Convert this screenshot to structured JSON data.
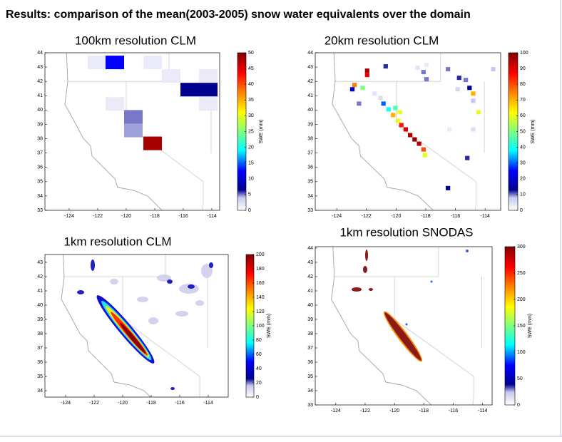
{
  "title": "Results: comparison of the mean(2003-2005) snow water equivalents over the domain",
  "panels": [
    {
      "title": "100km resolution CLM",
      "xlim": [
        -125.7,
        -113.45
      ],
      "ylim": [
        33,
        44
      ],
      "xticks": [
        -124,
        -122,
        -120,
        -118,
        -116,
        -114
      ],
      "yticks": [
        33,
        34,
        35,
        36,
        37,
        38,
        39,
        40,
        41,
        42,
        43,
        44
      ],
      "colorbar": {
        "label": "SWE (mm)",
        "lim": [
          0,
          50
        ],
        "ticks": [
          0,
          5,
          10,
          15,
          20,
          25,
          30,
          35,
          40,
          45,
          50
        ]
      },
      "cells": [
        {
          "lon": -122.7,
          "lat": 42.85,
          "value": 1.5
        },
        {
          "lon": -121.45,
          "lat": 42.85,
          "value": 12.5
        },
        {
          "lon": -118.8,
          "lat": 42.85,
          "value": 1.5
        },
        {
          "lon": -117.5,
          "lat": 41.9,
          "value": 1.5
        },
        {
          "lon": -114.9,
          "lat": 41.9,
          "value": 1.5
        },
        {
          "lon": -116.2,
          "lat": 40.95,
          "value": 6.5
        },
        {
          "lon": -114.9,
          "lat": 40.95,
          "value": 6.5
        },
        {
          "lon": -121.45,
          "lat": 39.95,
          "value": 1.5
        },
        {
          "lon": -114.9,
          "lat": 39.95,
          "value": 1.5
        },
        {
          "lon": -120.15,
          "lat": 39.05,
          "value": 5
        },
        {
          "lon": -120.15,
          "lat": 38.1,
          "value": 4.5
        },
        {
          "lon": -118.8,
          "lat": 37.2,
          "value": 48
        }
      ]
    },
    {
      "title": "20km resolution CLM",
      "xlim": [
        -125.45,
        -112.95
      ],
      "ylim": [
        33,
        44
      ],
      "xticks": [
        -124,
        -122,
        -120,
        -118,
        -116,
        -114
      ],
      "yticks": [
        33,
        34,
        35,
        36,
        37,
        38,
        39,
        40,
        41,
        42,
        43,
        44
      ],
      "colorbar": {
        "label": "SWE (mm)",
        "lim": [
          0,
          100
        ],
        "ticks": [
          0,
          10,
          20,
          30,
          40,
          50,
          60,
          70,
          80,
          90,
          100
        ]
      },
      "cells": [
        {
          "lon": -122.1,
          "lat": 42.6,
          "value": 95
        },
        {
          "lon": -122.1,
          "lat": 42.3,
          "value": 90
        },
        {
          "lon": -120.85,
          "lat": 42.9,
          "value": 12
        },
        {
          "lon": -122.95,
          "lat": 41.6,
          "value": 75
        },
        {
          "lon": -122.4,
          "lat": 41.4,
          "value": 50
        },
        {
          "lon": -123.1,
          "lat": 41.3,
          "value": 20
        },
        {
          "lon": -122.65,
          "lat": 40.3,
          "value": 10
        },
        {
          "lon": -121.6,
          "lat": 41.0,
          "value": 4
        },
        {
          "lon": -121.2,
          "lat": 40.7,
          "value": 5
        },
        {
          "lon": -121.0,
          "lat": 40.3,
          "value": 30
        },
        {
          "lon": -120.65,
          "lat": 39.9,
          "value": 40
        },
        {
          "lon": -120.2,
          "lat": 40.0,
          "value": 45
        },
        {
          "lon": -119.9,
          "lat": 39.7,
          "value": 60
        },
        {
          "lon": -120.35,
          "lat": 39.5,
          "value": 70
        },
        {
          "lon": -120.0,
          "lat": 39.1,
          "value": 60
        },
        {
          "lon": -119.8,
          "lat": 38.8,
          "value": 85
        },
        {
          "lon": -119.5,
          "lat": 38.5,
          "value": 90
        },
        {
          "lon": -119.2,
          "lat": 38.1,
          "value": 95
        },
        {
          "lon": -118.9,
          "lat": 37.8,
          "value": 98
        },
        {
          "lon": -118.6,
          "lat": 37.5,
          "value": 95
        },
        {
          "lon": -118.3,
          "lat": 37.1,
          "value": 80
        },
        {
          "lon": -118.2,
          "lat": 36.7,
          "value": 60
        },
        {
          "lon": -118.3,
          "lat": 42.5,
          "value": 10
        },
        {
          "lon": -116.65,
          "lat": 42.7,
          "value": 10
        },
        {
          "lon": -118.1,
          "lat": 42.0,
          "value": 10
        },
        {
          "lon": -115.9,
          "lat": 42.1,
          "value": 12
        },
        {
          "lon": -115.45,
          "lat": 41.95,
          "value": 10
        },
        {
          "lon": -115.2,
          "lat": 41.4,
          "value": 15
        },
        {
          "lon": -116.0,
          "lat": 41.3,
          "value": 6
        },
        {
          "lon": -114.95,
          "lat": 41.0,
          "value": 70
        },
        {
          "lon": -113.6,
          "lat": 42.7,
          "value": 8
        },
        {
          "lon": -114.95,
          "lat": 40.5,
          "value": 8
        },
        {
          "lon": -114.6,
          "lat": 39.7,
          "value": 60
        },
        {
          "lon": -116.55,
          "lat": 38.5,
          "value": 3
        },
        {
          "lon": -114.95,
          "lat": 38.5,
          "value": 5
        },
        {
          "lon": -115.35,
          "lat": 36.5,
          "value": 12
        },
        {
          "lon": -118.1,
          "lat": 43.0,
          "value": 3
        },
        {
          "lon": -118.7,
          "lat": 42.8,
          "value": 4
        },
        {
          "lon": -116.65,
          "lat": 34.4,
          "value": 15
        }
      ]
    },
    {
      "title": "1km resolution CLM",
      "xlim": [
        -125.45,
        -112.6
      ],
      "ylim": [
        33.55,
        43.55
      ],
      "xticks": [
        -124,
        -122,
        -120,
        -118,
        -116,
        -114
      ],
      "yticks": [
        34,
        35,
        36,
        37,
        38,
        39,
        40,
        41,
        42,
        43
      ],
      "colorbar": {
        "label": "SWE (mm)",
        "lim": [
          0,
          200
        ],
        "ticks": [
          0,
          20,
          40,
          60,
          80,
          100,
          120,
          140,
          160,
          180,
          200
        ]
      }
    },
    {
      "title": "1km resolution SNODAS",
      "xlim": [
        -125.4,
        -113.35
      ],
      "ylim": [
        33,
        44.1
      ],
      "xticks": [
        -124,
        -122,
        -120,
        -118,
        -116,
        -114
      ],
      "yticks": [
        33,
        34,
        35,
        36,
        37,
        38,
        39,
        40,
        41,
        42,
        43,
        44
      ],
      "colorbar": {
        "label": "SWE (mm)",
        "lim": [
          0,
          300
        ],
        "ticks": [
          0,
          50,
          100,
          150,
          200,
          250,
          300
        ]
      }
    }
  ]
}
